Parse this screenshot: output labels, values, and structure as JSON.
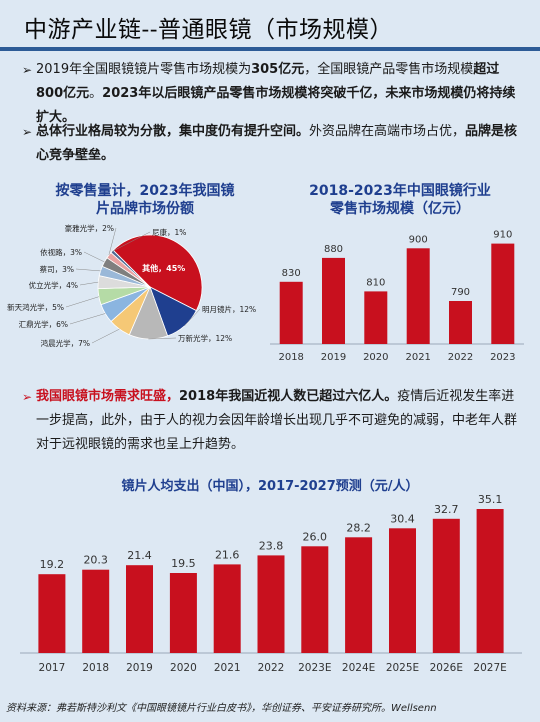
{
  "title": "中游产业链--普通眼镜（市场规模）",
  "bullets": {
    "b1": {
      "p1": "2019年全国眼镜镜片零售市场规模为",
      "p1b": "305亿元",
      "p2": "，全国眼镜产品零售市场规模",
      "p2b": "超过800亿元",
      "p3": "。",
      "p4b": "2023年以后眼镜产品零售市场规模将突破千亿，未来市场规模仍将持续扩大。"
    },
    "b2": {
      "p1b": "总体行业格局较为分散，集中度仍有提升空间。",
      "p2": "外资品牌在高端市场占优，",
      "p3b": "品牌是核心竞争壁垒。"
    },
    "b3": {
      "p1": "我国眼镜市场需求旺盛，",
      "p1b": "2018年我国近视人数已超过六亿人。",
      "p2": "疫情后近视发生率进一步提高，此外，由于人的视力会因年龄增长出现几乎不可避免的减弱，中老年人群对于远视眼镜的需求也呈上升趋势。"
    }
  },
  "pie_title_l1": "按零售量计，2023年我国镜",
  "pie_title_l2": "片品牌市场份额",
  "bar1_title_l1": "2018-2023年中国眼镜行业",
  "bar1_title_l2": "零售市场规模（亿元）",
  "bar2_title": "镜片人均支出（中国），2017-2027预测（元/人）",
  "footer": "资料来源：弗若斯特沙利文《中国眼镜镜片行业白皮书》，华创证券、平安证券研究所。Wellsenn",
  "chart_data": [
    {
      "type": "pie",
      "title": "按零售量计，2023年我国镜片品牌市场份额",
      "slices": [
        {
          "label": "其他",
          "value": 45,
          "color": "#c8101e"
        },
        {
          "label": "明月镜片",
          "value": 12,
          "color": "#1f3f8f"
        },
        {
          "label": "万新光学",
          "value": 12,
          "color": "#b8b8b8"
        },
        {
          "label": "鸿晨光学",
          "value": 7,
          "color": "#f5c876"
        },
        {
          "label": "汇鼎光学",
          "value": 6,
          "color": "#8bb5e0"
        },
        {
          "label": "新天鸿光学",
          "value": 5,
          "color": "#b5dba6"
        },
        {
          "label": "优立光学",
          "value": 4,
          "color": "#dcdcdc"
        },
        {
          "label": "蔡司",
          "value": 3,
          "color": "#9ab8d8"
        },
        {
          "label": "依视路",
          "value": 3,
          "color": "#7f7f7f"
        },
        {
          "label": "豪雅光学",
          "value": 2,
          "color": "#e7a0a0"
        },
        {
          "label": "尼康",
          "value": 1,
          "color": "#4f6a94"
        }
      ]
    },
    {
      "type": "bar",
      "title": "2018-2023年中国眼镜行业零售市场规模（亿元）",
      "categories": [
        "2018",
        "2019",
        "2020",
        "2021",
        "2022",
        "2023"
      ],
      "values": [
        830,
        880,
        810,
        900,
        790,
        910
      ],
      "ylim": [
        700,
        930
      ],
      "color": "#c8101e"
    },
    {
      "type": "bar",
      "title": "镜片人均支出（中国），2017-2027预测（元/人）",
      "categories": [
        "2017",
        "2018",
        "2019",
        "2020",
        "2021",
        "2022",
        "2023E",
        "2024E",
        "2025E",
        "2026E",
        "2027E"
      ],
      "values": [
        19.2,
        20.3,
        21.4,
        19.5,
        21.6,
        23.8,
        26.0,
        28.2,
        30.4,
        32.7,
        35.1
      ],
      "value_labels": [
        "19.2",
        "20.3",
        "21.4",
        "19.5",
        "21.6",
        "23.8",
        "26.0",
        "28.2",
        "30.4",
        "32.7",
        "35.1"
      ],
      "ylim": [
        0,
        35.1
      ],
      "color": "#c8101e"
    }
  ]
}
